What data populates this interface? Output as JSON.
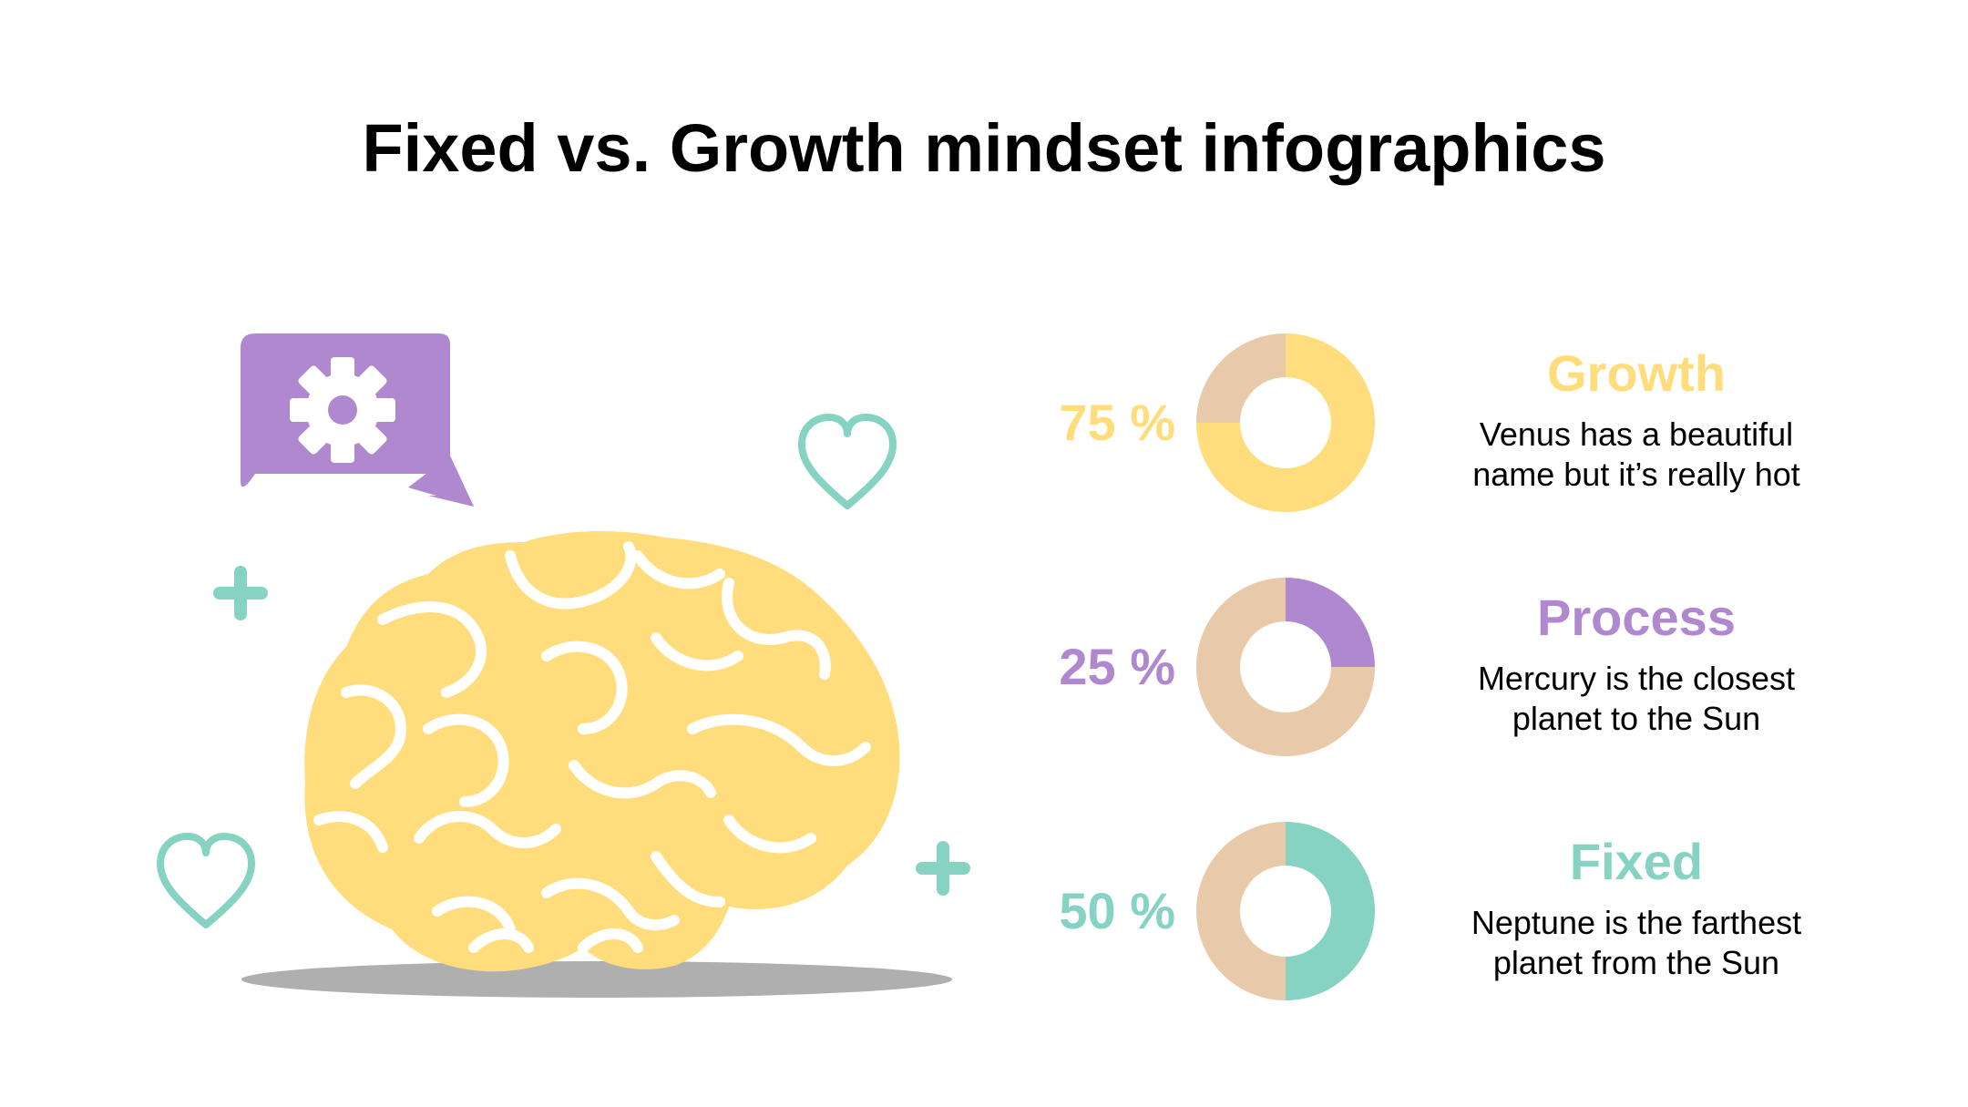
{
  "title": "Fixed vs. Growth mindset infographics",
  "colors": {
    "yellow": "#FFDD7C",
    "purple": "#B088CF",
    "teal": "#87D3C3",
    "tan": "#E8C9A9",
    "shadow": "#AFAFAF"
  },
  "icons": [
    "gear-icon",
    "heart-icon",
    "plus-icon",
    "brain-icon",
    "speech-bubble-icon"
  ],
  "chart_data": [
    {
      "type": "pie",
      "name": "Growth",
      "label": "75 %",
      "value": 75,
      "color": "#FFDD7C",
      "remainder_color": "#E8C9A9",
      "description": "Venus has a beautiful name but it’s really hot"
    },
    {
      "type": "pie",
      "name": "Process",
      "label": "25 %",
      "value": 25,
      "color": "#B088CF",
      "remainder_color": "#E8C9A9",
      "description": "Mercury is the closest planet to the Sun"
    },
    {
      "type": "pie",
      "name": "Fixed",
      "label": "50 %",
      "value": 50,
      "color": "#87D3C3",
      "remainder_color": "#E8C9A9",
      "description": "Neptune is the farthest planet from the Sun"
    }
  ],
  "rows": [
    {
      "pct": "75 %",
      "heading": "Growth",
      "desc_line1": "Venus has a beautiful",
      "desc_line2": "name but it’s really hot"
    },
    {
      "pct": "25 %",
      "heading": "Process",
      "desc_line1": "Mercury is the closest",
      "desc_line2": "planet to the Sun"
    },
    {
      "pct": "50 %",
      "heading": "Fixed",
      "desc_line1": "Neptune is the farthest",
      "desc_line2": "planet from the Sun"
    }
  ]
}
